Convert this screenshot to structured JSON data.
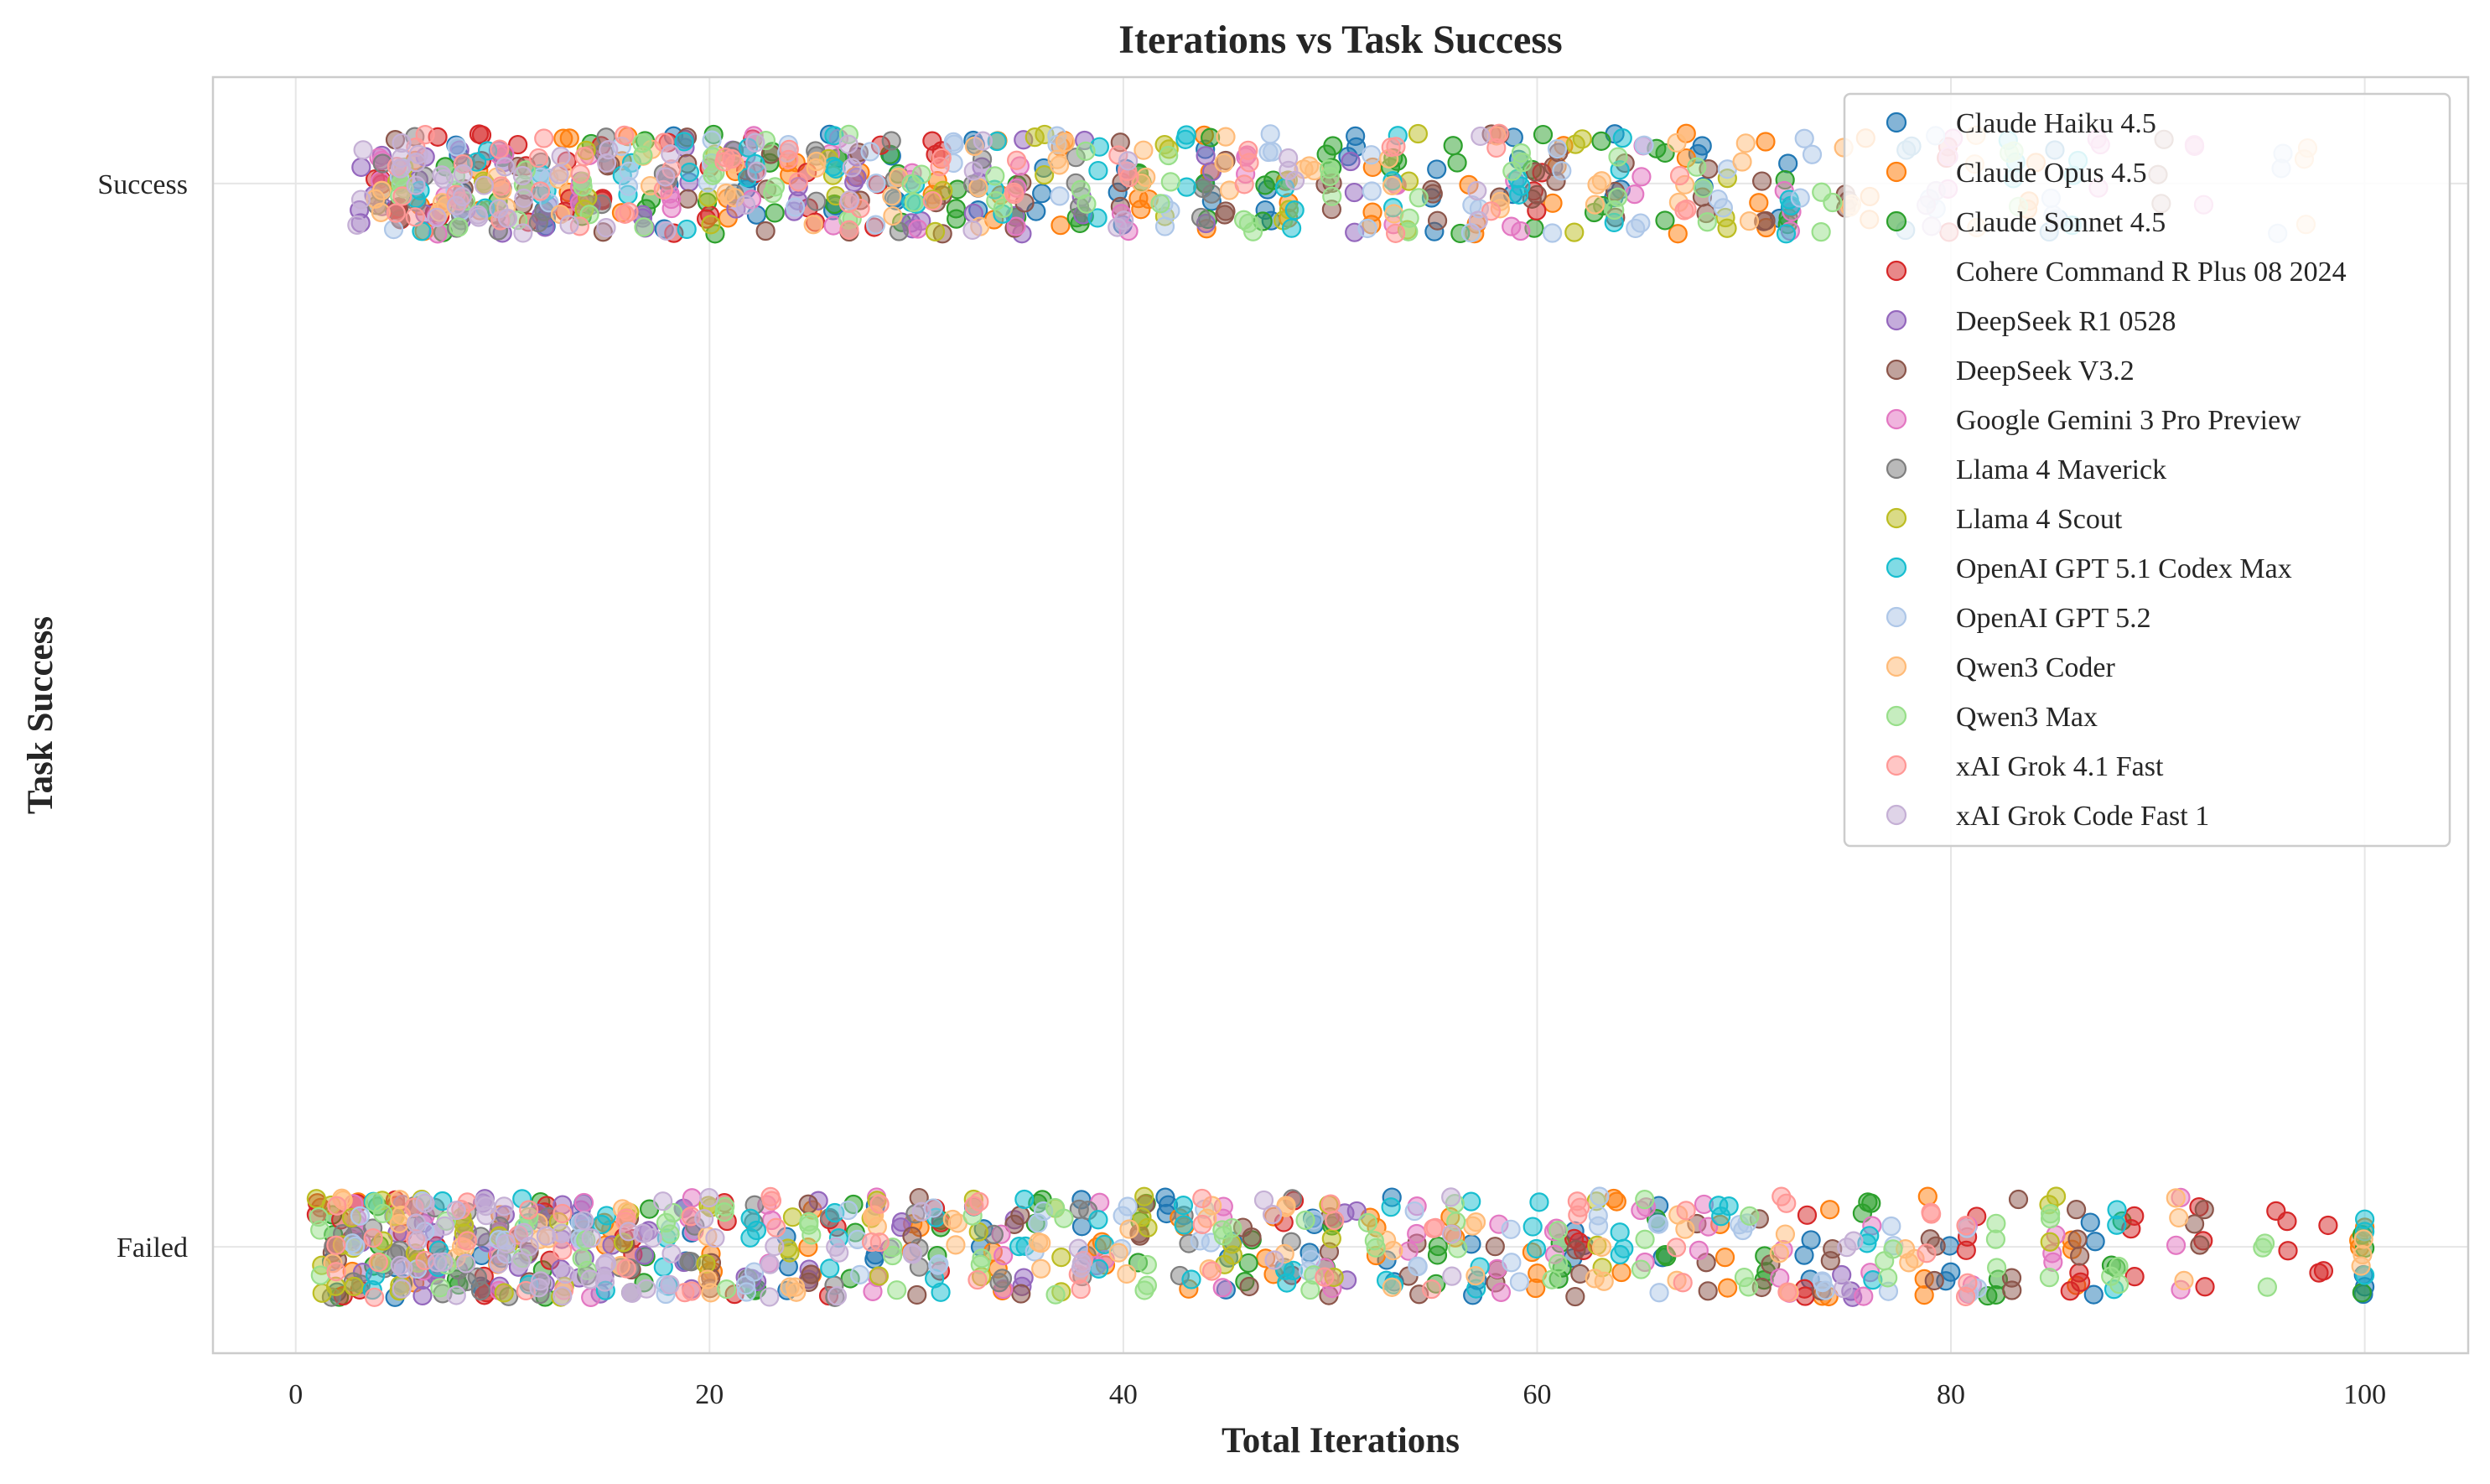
{
  "chart_data": {
    "type": "scatter",
    "title": "Iterations vs Task Success",
    "xlabel": "Total Iterations",
    "ylabel": "Task Success",
    "xlim": [
      -4,
      105
    ],
    "ylim": [
      -0.1,
      1.1
    ],
    "xticks": [
      0,
      20,
      40,
      60,
      80,
      100
    ],
    "xtick_labels": [
      "0",
      "20",
      "40",
      "60",
      "80",
      "100"
    ],
    "yticks": [
      0,
      1
    ],
    "ytick_labels": [
      "Failed",
      "Success"
    ],
    "grid": true,
    "legend_position": "top-right",
    "jitter": "points are vertically jittered around the categorical y value",
    "series": [
      {
        "name": "Claude Haiku 4.5",
        "color": "#1f77b4",
        "success_x": [
          5,
          8,
          12,
          18,
          22,
          26,
          29,
          33,
          36,
          40,
          44,
          47,
          51,
          55,
          59,
          64,
          68,
          72,
          78,
          85
        ],
        "failed_x": [
          2,
          5,
          9,
          14,
          19,
          24,
          28,
          33,
          38,
          42,
          45,
          49,
          53,
          57,
          62,
          66,
          73,
          80,
          87,
          100
        ]
      },
      {
        "name": "Claude Opus 4.5",
        "color": "#ff7f0e",
        "success_x": [
          6,
          9,
          13,
          16,
          21,
          24,
          27,
          31,
          34,
          37,
          41,
          44,
          48,
          52,
          57,
          61,
          67,
          71,
          76,
          84
        ],
        "failed_x": [
          3,
          6,
          10,
          15,
          20,
          25,
          30,
          34,
          39,
          43,
          47,
          52,
          56,
          60,
          64,
          69,
          74,
          79,
          86,
          100
        ]
      },
      {
        "name": "Claude Sonnet 4.5",
        "color": "#2ca02c",
        "success_x": [
          7,
          10,
          14,
          17,
          20,
          23,
          26,
          29,
          32,
          35,
          38,
          41,
          44,
          47,
          50,
          53,
          56,
          60,
          63,
          66,
          72
        ],
        "failed_x": [
          2,
          4,
          8,
          12,
          17,
          22,
          27,
          31,
          36,
          41,
          46,
          50,
          55,
          61,
          66,
          71,
          76,
          82,
          88,
          100
        ]
      },
      {
        "name": "Cohere Command R Plus 08 2024",
        "color": "#d62728",
        "success_x": [
          4,
          5,
          7,
          9,
          11,
          13,
          15,
          18,
          20,
          22,
          25,
          28,
          31,
          60,
          80
        ],
        "failed_x": [
          1,
          2,
          3,
          5,
          7,
          9,
          12,
          16,
          21,
          26,
          31,
          48,
          62,
          73,
          81,
          86,
          89,
          92,
          96,
          98
        ]
      },
      {
        "name": "DeepSeek R1 0528",
        "color": "#9467bd",
        "success_x": [
          3,
          4,
          6,
          8,
          10,
          12,
          14,
          17,
          19,
          21,
          24,
          27,
          30,
          33,
          35,
          38,
          44,
          51
        ],
        "failed_x": [
          3,
          5,
          6,
          7,
          8,
          9,
          10,
          11,
          12,
          13,
          14,
          15,
          17,
          19,
          22,
          25,
          29,
          35,
          51,
          75
        ]
      },
      {
        "name": "DeepSeek V3.2",
        "color": "#8c564b",
        "success_x": [
          5,
          8,
          11,
          15,
          19,
          23,
          27,
          31,
          35,
          40,
          45,
          50,
          55,
          58,
          60,
          61,
          64,
          68,
          71,
          75,
          90
        ],
        "failed_x": [
          2,
          6,
          11,
          16,
          20,
          25,
          30,
          35,
          41,
          46,
          50,
          54,
          58,
          62,
          68,
          71,
          74,
          79,
          83,
          86,
          92
        ]
      },
      {
        "name": "Google Gemini 3 Pro Preview",
        "color": "#e377c2",
        "success_x": [
          4,
          7,
          10,
          14,
          18,
          22,
          26,
          30,
          35,
          40,
          46,
          53,
          59,
          65,
          72,
          80,
          87,
          92
        ],
        "failed_x": [
          3,
          6,
          10,
          14,
          19,
          23,
          28,
          34,
          39,
          45,
          50,
          54,
          58,
          61,
          65,
          68,
          72,
          76,
          81,
          85,
          91
        ]
      },
      {
        "name": "Llama 4 Maverick",
        "color": "#7f7f7f",
        "success_x": [
          4,
          6,
          8,
          10,
          12,
          15,
          18,
          21,
          25,
          29,
          33,
          38,
          44
        ],
        "failed_x": [
          2,
          3,
          4,
          5,
          6,
          7,
          8,
          9,
          10,
          12,
          14,
          16,
          19,
          22,
          26,
          30,
          34,
          38,
          43,
          48
        ]
      },
      {
        "name": "Llama 4 Scout",
        "color": "#bcbd22",
        "success_x": [
          5,
          9,
          14,
          20,
          26,
          31,
          36,
          42,
          48,
          54,
          62,
          69
        ],
        "failed_x": [
          1,
          2,
          3,
          4,
          5,
          6,
          8,
          10,
          13,
          16,
          20,
          24,
          28,
          33,
          37,
          41,
          45,
          50,
          63,
          85
        ]
      },
      {
        "name": "OpenAI GPT 5.1 Codex Max",
        "color": "#17becf",
        "success_x": [
          6,
          9,
          12,
          16,
          19,
          22,
          26,
          30,
          34,
          39,
          43,
          48,
          53,
          59,
          64,
          72,
          83,
          86
        ],
        "failed_x": [
          4,
          7,
          11,
          15,
          18,
          22,
          26,
          31,
          35,
          39,
          43,
          48,
          53,
          57,
          60,
          64,
          69,
          76,
          88,
          100
        ]
      },
      {
        "name": "OpenAI GPT 5.2",
        "color": "#aec7e8",
        "success_x": [
          5,
          8,
          12,
          16,
          20,
          24,
          28,
          32,
          37,
          42,
          47,
          52,
          57,
          61,
          65,
          69,
          73,
          79,
          85,
          96
        ],
        "failed_x": [
          3,
          6,
          10,
          14,
          18,
          22,
          27,
          31,
          36,
          40,
          44,
          49,
          54,
          59,
          63,
          66,
          70,
          74,
          77,
          81
        ]
      },
      {
        "name": "Qwen3 Coder",
        "color": "#ffbb78",
        "success_x": [
          4,
          7,
          10,
          13,
          17,
          21,
          25,
          29,
          33,
          37,
          41,
          45,
          49,
          53,
          58,
          63,
          67,
          70,
          75,
          81,
          97
        ],
        "failed_x": [
          2,
          5,
          8,
          12,
          16,
          20,
          24,
          28,
          32,
          36,
          40,
          44,
          48,
          53,
          57,
          63,
          67,
          72,
          78,
          91,
          100
        ]
      },
      {
        "name": "Qwen3 Max",
        "color": "#98df8a",
        "success_x": [
          5,
          8,
          11,
          14,
          17,
          20,
          23,
          27,
          30,
          34,
          38,
          42,
          46,
          50,
          54,
          59,
          64,
          68,
          74,
          83
        ],
        "failed_x": [
          1,
          4,
          7,
          11,
          14,
          18,
          21,
          25,
          29,
          33,
          37,
          41,
          45,
          49,
          52,
          56,
          61,
          65,
          70,
          77,
          82,
          85,
          88,
          95
        ]
      },
      {
        "name": "xAI Grok 4.1 Fast",
        "color": "#ff9896",
        "success_x": [
          5,
          6,
          8,
          10,
          12,
          14,
          16,
          18,
          21,
          24,
          27,
          31,
          35,
          40,
          46,
          53,
          58,
          67
        ],
        "failed_x": [
          2,
          4,
          6,
          8,
          11,
          13,
          16,
          19,
          23,
          28,
          33,
          38,
          44,
          50,
          55,
          62,
          67,
          72,
          79,
          81
        ]
      },
      {
        "name": "xAI Grok Code Fast 1",
        "color": "#c5b0d5",
        "success_x": [
          3,
          5,
          6,
          7,
          8,
          9,
          10,
          11,
          13,
          15,
          18,
          22,
          27,
          33,
          40,
          48,
          57,
          79
        ],
        "failed_x": [
          5,
          6,
          7,
          8,
          9,
          10,
          11,
          12,
          13,
          14,
          15,
          16,
          17,
          18,
          20,
          23,
          26,
          30,
          38,
          47,
          56,
          75
        ]
      }
    ]
  }
}
